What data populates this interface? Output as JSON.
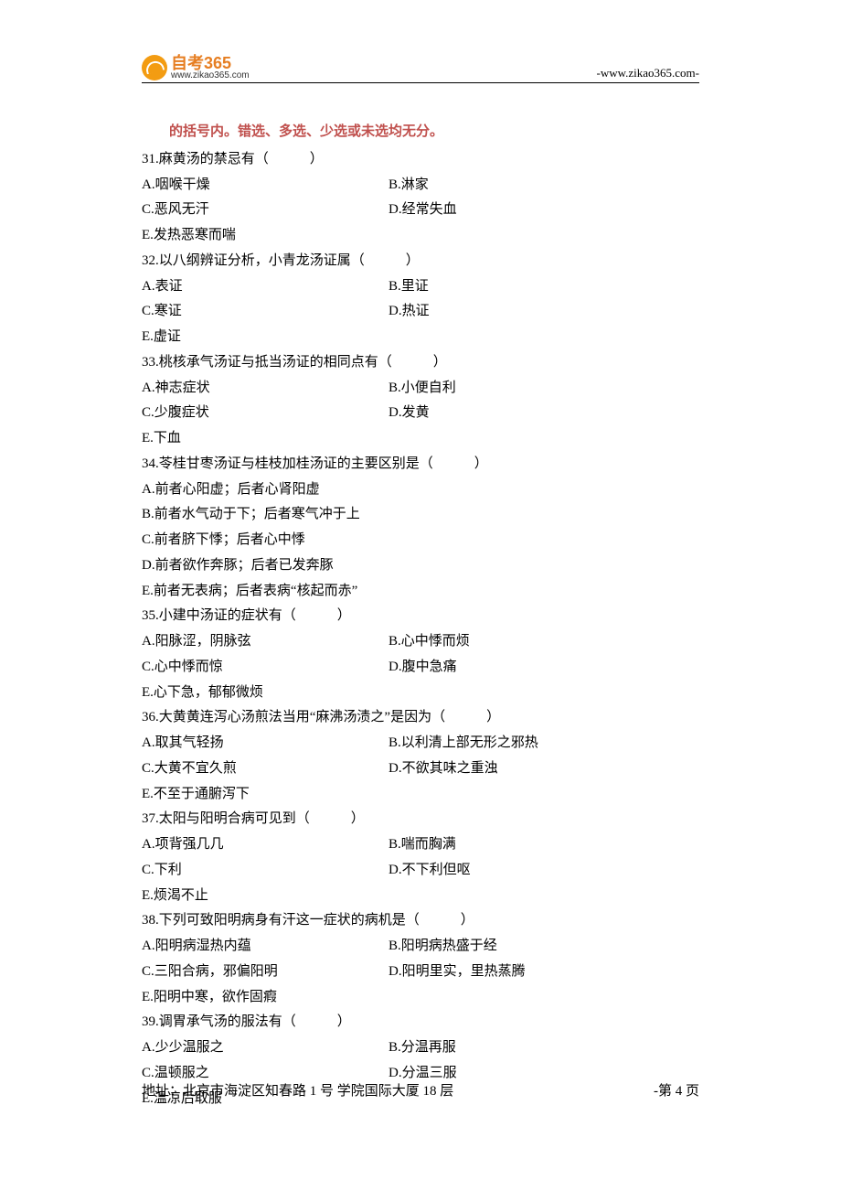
{
  "header": {
    "logo_main": "自考365",
    "logo_url": "www.zikao365.com",
    "site_url": "-www.zikao365.com-"
  },
  "instruction": "的括号内。错选、多选、少选或未选均无分。",
  "questions": [
    {
      "num": "31",
      "stem": "麻黄汤的禁忌有（　　　）",
      "rows": [
        {
          "a": "A.咽喉干燥",
          "b": "B.淋家"
        },
        {
          "a": "C.恶风无汗",
          "b": "D.经常失血"
        },
        {
          "a": "E.发热恶寒而喘",
          "b": ""
        }
      ]
    },
    {
      "num": "32",
      "stem": "以八纲辨证分析，小青龙汤证属（　　　）",
      "rows": [
        {
          "a": "A.表证",
          "b": "B.里证"
        },
        {
          "a": "C.寒证",
          "b": "D.热证"
        },
        {
          "a": "E.虚证",
          "b": ""
        }
      ]
    },
    {
      "num": "33",
      "stem": "桃核承气汤证与抵当汤证的相同点有（　　　）",
      "rows": [
        {
          "a": "A.神志症状",
          "b": "B.小便自利"
        },
        {
          "a": "C.少腹症状",
          "b": "D.发黄"
        },
        {
          "a": "E.下血",
          "b": ""
        }
      ]
    },
    {
      "num": "34",
      "stem": "苓桂甘枣汤证与桂枝加桂汤证的主要区别是（　　　）",
      "full_rows": [
        "A.前者心阳虚；后者心肾阳虚",
        "B.前者水气动于下；后者寒气冲于上",
        "C.前者脐下悸；后者心中悸",
        "D.前者欲作奔豚；后者已发奔豚",
        "E.前者无表病；后者表病“核起而赤”"
      ]
    },
    {
      "num": "35",
      "stem": "小建中汤证的症状有（　　　）",
      "rows": [
        {
          "a": "A.阳脉涩，阴脉弦",
          "b": "B.心中悸而烦"
        },
        {
          "a": "C.心中悸而惊",
          "b": "D.腹中急痛"
        },
        {
          "a": "E.心下急，郁郁微烦",
          "b": ""
        }
      ]
    },
    {
      "num": "36",
      "stem": "大黄黄连泻心汤煎法当用“麻沸汤渍之”是因为（　　　）",
      "rows": [
        {
          "a": "A.取其气轻扬",
          "b": "B.以利清上部无形之邪热"
        },
        {
          "a": "C.大黄不宜久煎",
          "b": "D.不欲其味之重浊"
        },
        {
          "a": "E.不至于通腑泻下",
          "b": ""
        }
      ]
    },
    {
      "num": "37",
      "stem": "太阳与阳明合病可见到（　　　）",
      "rows": [
        {
          "a": "A.项背强几几",
          "b": "B.喘而胸满"
        },
        {
          "a": "C.下利",
          "b": "D.不下利但呕"
        },
        {
          "a": "E.烦渴不止",
          "b": ""
        }
      ]
    },
    {
      "num": "38",
      "stem": "下列可致阳明病身有汗这一症状的病机是（　　　）",
      "rows": [
        {
          "a": "A.阳明病湿热内蕴",
          "b": "B.阳明病热盛于经"
        },
        {
          "a": "C.三阳合病，邪偏阳明",
          "b": "D.阳明里实，里热蒸腾"
        },
        {
          "a": "E.阳明中寒，欲作固瘕",
          "b": ""
        }
      ]
    },
    {
      "num": "39",
      "stem": "调胃承气汤的服法有（　　　）",
      "rows": [
        {
          "a": "A.少少温服之",
          "b": "B.分温再服"
        },
        {
          "a": "C.温顿服之",
          "b": "D.分温三服"
        },
        {
          "a": "E.温凉后取服",
          "b": ""
        }
      ]
    }
  ],
  "footer": {
    "address": "地址：北京市海淀区知春路 1 号 学院国际大厦 18 层",
    "page": "-第 4 页"
  }
}
